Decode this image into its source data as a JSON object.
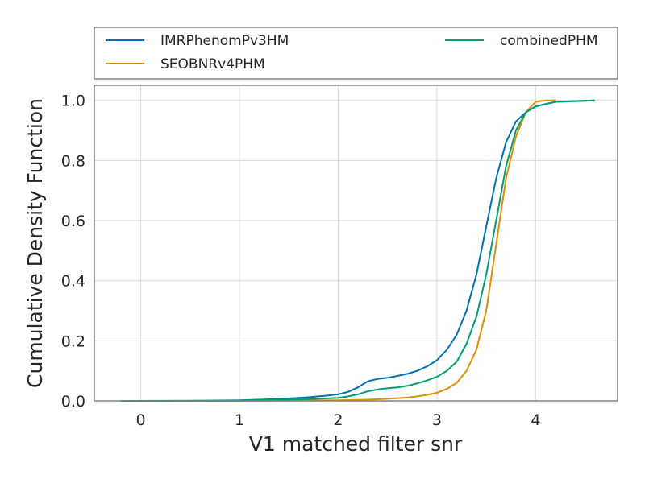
{
  "chart_data": {
    "type": "line",
    "title": "",
    "xlabel": "V1 matched filter snr",
    "ylabel": "Cumulative Density Function",
    "xlim": [
      -0.47,
      4.83
    ],
    "ylim": [
      0,
      1.05
    ],
    "x_ticks": [
      0,
      1,
      2,
      3,
      4
    ],
    "y_ticks": [
      0.0,
      0.2,
      0.4,
      0.6,
      0.8,
      1.0
    ],
    "x_tick_labels": [
      "0",
      "1",
      "2",
      "3",
      "4"
    ],
    "y_tick_labels": [
      "0.0",
      "0.2",
      "0.4",
      "0.6",
      "0.8",
      "1.0"
    ],
    "grid": true,
    "legend_position": "top, above plot",
    "series": [
      {
        "name": "IMRPhenomPv3HM",
        "color": "#0072b2",
        "points": [
          [
            -0.2,
            0.0
          ],
          [
            0.5,
            0.0
          ],
          [
            1.0,
            0.002
          ],
          [
            1.3,
            0.005
          ],
          [
            1.5,
            0.008
          ],
          [
            1.7,
            0.012
          ],
          [
            1.9,
            0.018
          ],
          [
            2.0,
            0.022
          ],
          [
            2.1,
            0.03
          ],
          [
            2.2,
            0.045
          ],
          [
            2.3,
            0.065
          ],
          [
            2.4,
            0.073
          ],
          [
            2.5,
            0.077
          ],
          [
            2.6,
            0.083
          ],
          [
            2.7,
            0.09
          ],
          [
            2.8,
            0.1
          ],
          [
            2.9,
            0.115
          ],
          [
            3.0,
            0.135
          ],
          [
            3.1,
            0.17
          ],
          [
            3.2,
            0.22
          ],
          [
            3.3,
            0.3
          ],
          [
            3.4,
            0.42
          ],
          [
            3.5,
            0.58
          ],
          [
            3.6,
            0.74
          ],
          [
            3.7,
            0.86
          ],
          [
            3.8,
            0.93
          ],
          [
            3.9,
            0.96
          ],
          [
            4.0,
            0.98
          ],
          [
            4.2,
            0.995
          ],
          [
            4.6,
            1.0
          ]
        ]
      },
      {
        "name": "SEOBNRv4PHM",
        "color": "#de8f05",
        "points": [
          [
            -0.2,
            0.0
          ],
          [
            1.0,
            0.0
          ],
          [
            1.5,
            0.001
          ],
          [
            2.0,
            0.002
          ],
          [
            2.3,
            0.004
          ],
          [
            2.5,
            0.007
          ],
          [
            2.7,
            0.011
          ],
          [
            2.8,
            0.015
          ],
          [
            2.9,
            0.02
          ],
          [
            3.0,
            0.027
          ],
          [
            3.1,
            0.04
          ],
          [
            3.2,
            0.06
          ],
          [
            3.3,
            0.1
          ],
          [
            3.4,
            0.17
          ],
          [
            3.5,
            0.3
          ],
          [
            3.6,
            0.52
          ],
          [
            3.7,
            0.74
          ],
          [
            3.8,
            0.88
          ],
          [
            3.9,
            0.96
          ],
          [
            4.0,
            0.995
          ],
          [
            4.1,
            1.0
          ],
          [
            4.2,
            1.0
          ]
        ]
      },
      {
        "name": "combinedPHM",
        "color": "#029e73",
        "points": [
          [
            -0.2,
            0.0
          ],
          [
            1.0,
            0.001
          ],
          [
            1.5,
            0.004
          ],
          [
            1.8,
            0.007
          ],
          [
            2.0,
            0.01
          ],
          [
            2.1,
            0.015
          ],
          [
            2.2,
            0.022
          ],
          [
            2.3,
            0.032
          ],
          [
            2.4,
            0.038
          ],
          [
            2.5,
            0.042
          ],
          [
            2.6,
            0.045
          ],
          [
            2.7,
            0.05
          ],
          [
            2.8,
            0.058
          ],
          [
            2.9,
            0.068
          ],
          [
            3.0,
            0.08
          ],
          [
            3.1,
            0.1
          ],
          [
            3.2,
            0.13
          ],
          [
            3.3,
            0.19
          ],
          [
            3.4,
            0.28
          ],
          [
            3.5,
            0.42
          ],
          [
            3.6,
            0.6
          ],
          [
            3.7,
            0.78
          ],
          [
            3.8,
            0.9
          ],
          [
            3.9,
            0.96
          ],
          [
            4.0,
            0.98
          ],
          [
            4.2,
            0.995
          ],
          [
            4.6,
            1.0
          ]
        ]
      }
    ]
  }
}
